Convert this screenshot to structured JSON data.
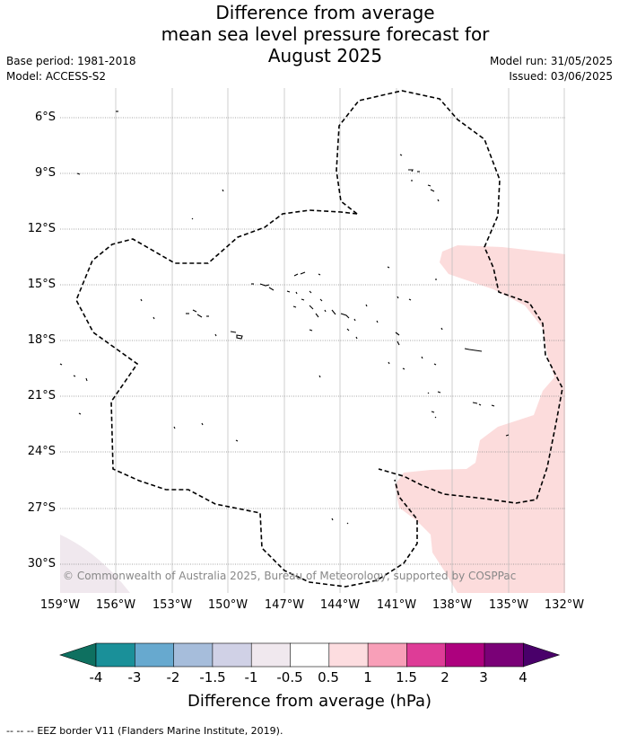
{
  "title": {
    "line1": "Difference from average",
    "line2": "mean sea level pressure forecast for",
    "line3": "August 2025"
  },
  "meta": {
    "base_period": "Base period: 1981-2018",
    "model": "Model: ACCESS-S2",
    "model_run": "Model run: 31/05/2025",
    "issued": "Issued: 03/06/2025"
  },
  "map": {
    "lon_range": [
      -159,
      -132
    ],
    "lat_range": [
      -32.3,
      -4
    ],
    "y_ticks": [
      "6°S",
      "9°S",
      "12°S",
      "15°S",
      "18°S",
      "21°S",
      "24°S",
      "27°S",
      "30°S"
    ],
    "x_ticks": [
      "159°W",
      "156°W",
      "153°W",
      "150°W",
      "147°W",
      "144°W",
      "141°W",
      "138°W",
      "135°W",
      "132°W"
    ],
    "copyright": "© Commonwealth of Australia 2025, Bureau of Meteorology, supported by COSPPac",
    "colors": {
      "positive_shading": "#fcdcdc",
      "negative_shading": "#f0e8ee",
      "eez_border": "#000000",
      "gridline": "#888888"
    }
  },
  "colorbar": {
    "labels": [
      "-4",
      "-3",
      "-2",
      "-1.5",
      "-1",
      "-0.5",
      "0.5",
      "1",
      "1.5",
      "2",
      "3",
      "4"
    ],
    "colors": [
      "#0e7060",
      "#1a9099",
      "#67a9cf",
      "#a6bddb",
      "#d0d1e6",
      "#f0e8ee",
      "#ffffff",
      "#fddde0",
      "#f89fb8",
      "#de3c97",
      "#ad017e",
      "#7a0177",
      "#49006a"
    ],
    "title": "Difference from average (hPa)"
  },
  "legend": {
    "symbol": "--  --  --",
    "text": "EEZ border V11 (Flanders Marine Institute, 2019)."
  }
}
